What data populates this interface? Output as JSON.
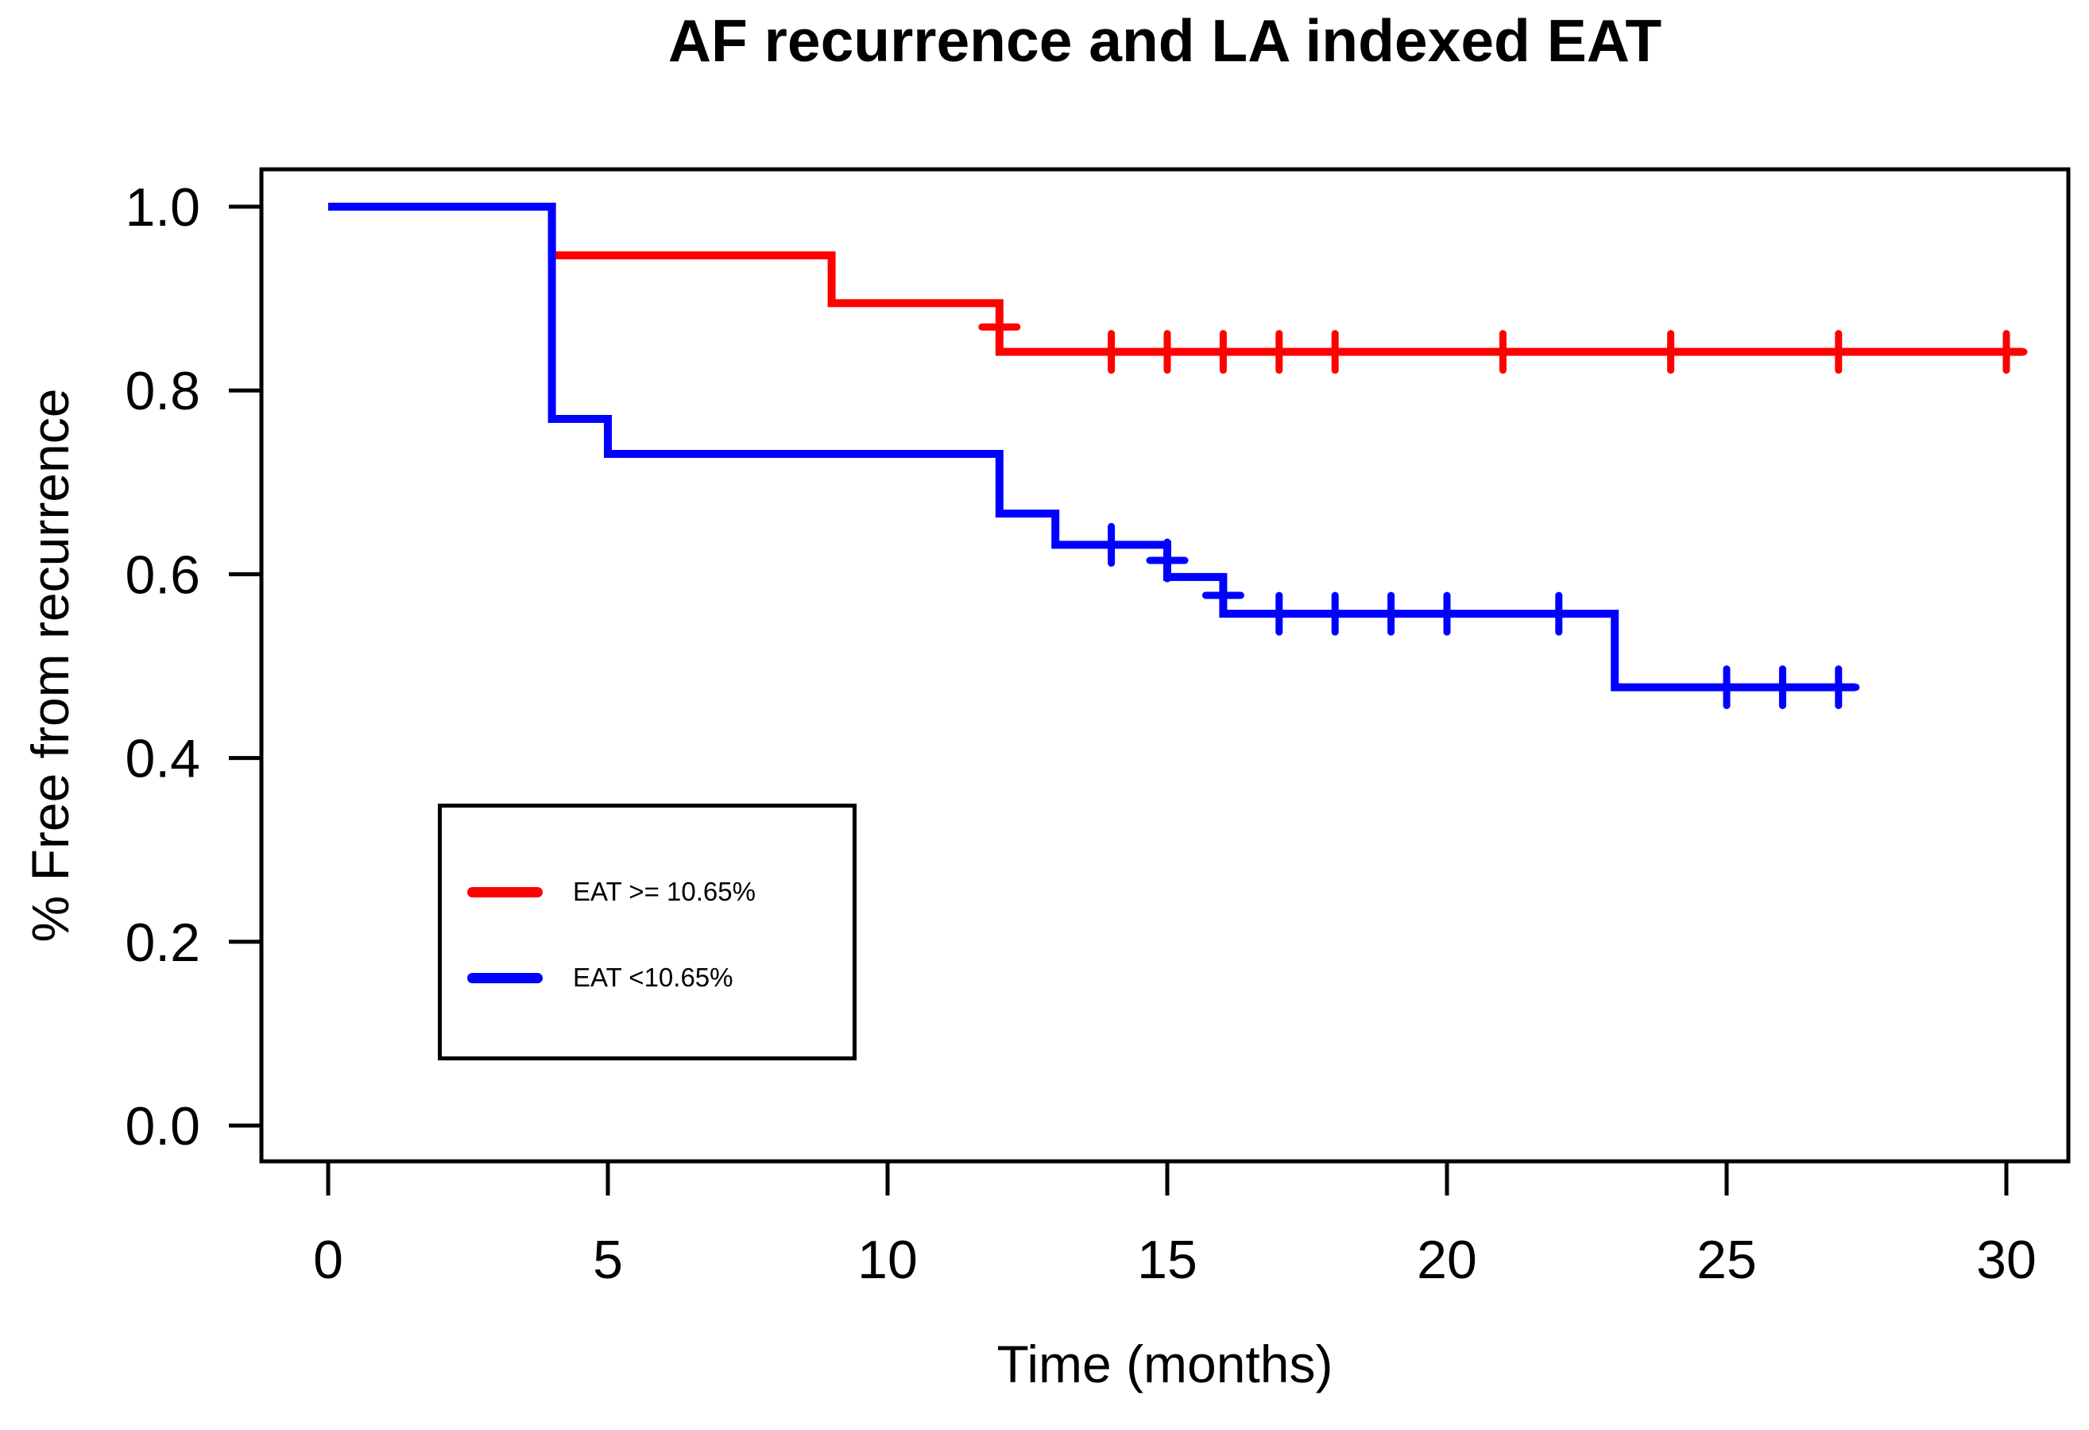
{
  "figure": {
    "background": "#FFFFFF",
    "frame_color": "#000000",
    "red": "#FF0000",
    "blue": "#0000FF"
  },
  "chart_data": {
    "type": "line",
    "subtype": "kaplan-meier-step",
    "title": "AF recurrence and LA indexed EAT",
    "xlabel": "Time (months)",
    "ylabel": "% Free from recurrence",
    "xlim": [
      0,
      30
    ],
    "ylim": [
      0.0,
      1.0
    ],
    "grid": false,
    "legend_position": "inside lower-left",
    "x_ticks": [
      0,
      5,
      10,
      15,
      20,
      25,
      30
    ],
    "x_tick_labels": [
      "0",
      "5",
      "10",
      "15",
      "20",
      "25",
      "30"
    ],
    "y_ticks": [
      1.0,
      0.8,
      0.6,
      0.4,
      0.2,
      0.0
    ],
    "y_tick_labels": [
      "1.0",
      "0.8",
      "0.6",
      "0.4",
      "0.2",
      "0.0"
    ],
    "series": [
      {
        "name": "EAT >= 10.65%",
        "color": "#FF0000",
        "steps": [
          [
            0,
            1.0
          ],
          [
            4,
            0.947
          ],
          [
            9,
            0.895
          ],
          [
            12,
            0.842
          ]
        ],
        "end_time": 30.3,
        "censor_marks": [
          [
            12,
            0.869
          ],
          [
            14,
            0.842
          ],
          [
            15,
            0.842
          ],
          [
            16,
            0.842
          ],
          [
            17,
            0.842
          ],
          [
            18,
            0.842
          ],
          [
            21,
            0.842
          ],
          [
            24,
            0.842
          ],
          [
            27,
            0.842
          ],
          [
            30,
            0.842
          ]
        ]
      },
      {
        "name": "EAT <10.65%",
        "color": "#0000FF",
        "steps": [
          [
            0,
            1.0
          ],
          [
            4,
            0.769
          ],
          [
            5,
            0.731
          ],
          [
            12,
            0.666
          ],
          [
            13,
            0.632
          ],
          [
            15,
            0.597
          ],
          [
            16,
            0.557
          ],
          [
            23,
            0.477
          ]
        ],
        "end_time": 27.3,
        "censor_marks": [
          [
            14,
            0.632
          ],
          [
            15,
            0.615
          ],
          [
            16,
            0.577
          ],
          [
            17,
            0.557
          ],
          [
            18,
            0.557
          ],
          [
            19,
            0.557
          ],
          [
            20,
            0.557
          ],
          [
            22,
            0.557
          ],
          [
            25,
            0.477
          ],
          [
            26,
            0.477
          ],
          [
            27,
            0.477
          ]
        ]
      }
    ]
  },
  "legend": {
    "items": [
      {
        "label": "EAT >= 10.65%",
        "color": "#FF0000"
      },
      {
        "label": "EAT <10.65%",
        "color": "#0000FF"
      }
    ]
  }
}
